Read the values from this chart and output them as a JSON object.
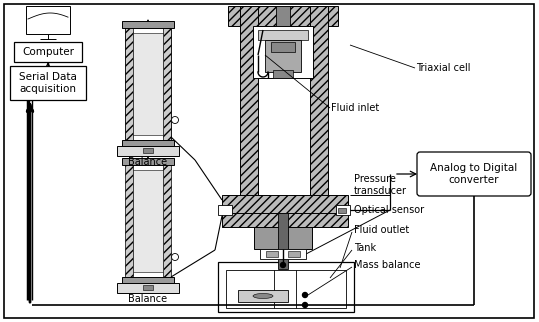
{
  "background_color": "#ffffff",
  "labels": {
    "computer": "Computer",
    "serial_data": "Serial Data\nacquisition",
    "balance1": "Balance",
    "balance2": "Balance",
    "triaxial_cell": "Triaxial cell",
    "fluid_inlet": "Fluid inlet",
    "pressure_transducer": "Pressure\ntransducer",
    "optical_sensor": "Optical sensor",
    "fluid_outlet": "Fluid outlet",
    "tank": "Tank",
    "mass_balance": "Mass balance",
    "analog_digital": "Analog to Digital\nconverter"
  },
  "figsize": [
    5.39,
    3.22
  ],
  "dpi": 100
}
